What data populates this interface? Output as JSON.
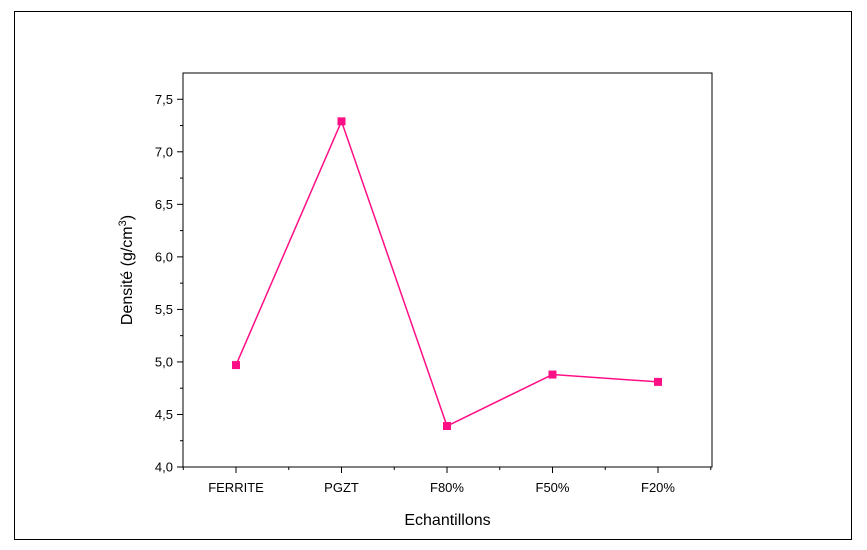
{
  "chart_data": {
    "type": "line",
    "title": "",
    "xlabel": "Echantillons",
    "ylabel_main": "Densité (g/cm",
    "ylabel_sup": "3",
    "ylabel_close": ")",
    "categories": [
      "FERRITE",
      "PGZT",
      "F80%",
      "F50%",
      "F20%"
    ],
    "series": [
      {
        "values": [
          4.97,
          7.29,
          4.39,
          4.88,
          4.81
        ],
        "color": "#ff0f86"
      }
    ],
    "ylim": [
      4.0,
      7.75
    ],
    "yticks": [
      "4,0",
      "4,5",
      "5,0",
      "5,5",
      "6,0",
      "6,5",
      "7,0",
      "7,5"
    ],
    "grid": false,
    "legend": "none"
  }
}
